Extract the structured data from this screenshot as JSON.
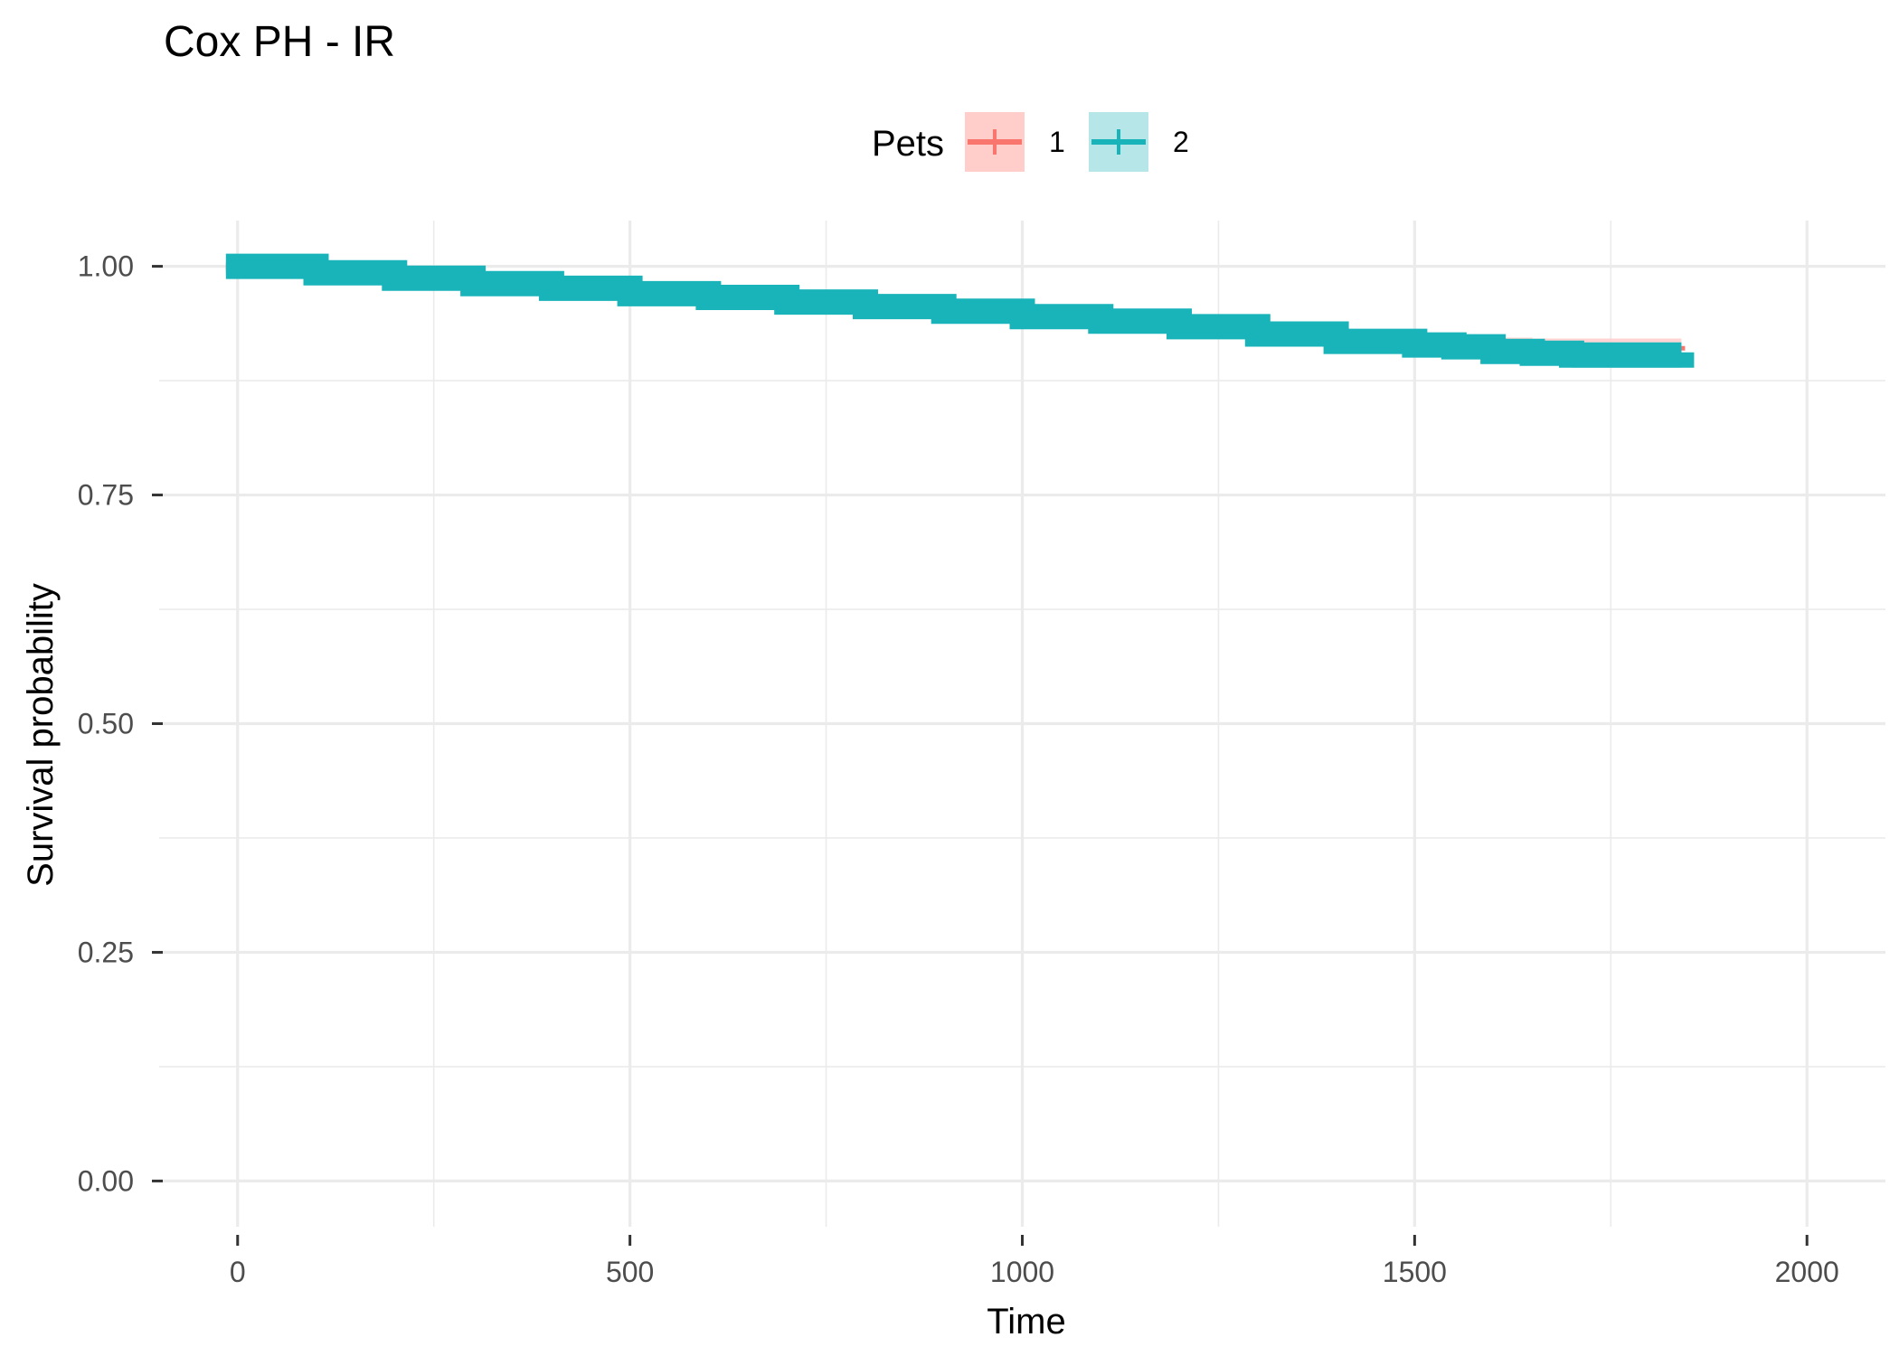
{
  "colors": {
    "series1": "#F8766D",
    "series1_band": "#FFCDCA",
    "series2": "#19B4B9",
    "series2_band": "#B7E6E8",
    "grid": "#EBEBEB",
    "tick": "#4D4D4D"
  },
  "chart_data": {
    "type": "line",
    "title": "Cox PH - IR",
    "xlabel": "Time",
    "ylabel": "Survival probability",
    "xlim": [
      -100,
      2100
    ],
    "ylim": [
      -0.05,
      1.05
    ],
    "x_ticks": [
      0,
      500,
      1000,
      1500,
      2000
    ],
    "x_tick_labels": [
      "0",
      "500",
      "1000",
      "1500",
      "2000"
    ],
    "y_ticks": [
      0,
      0.25,
      0.5,
      0.75,
      1.0
    ],
    "y_tick_labels": [
      "0.00",
      "0.25",
      "0.50",
      "0.75",
      "1.00"
    ],
    "grid": true,
    "legend": {
      "title": "Pets",
      "position": "top",
      "entries": [
        "1",
        "2"
      ]
    },
    "series": [
      {
        "name": "1",
        "color": "#F8766D",
        "x": [
          -15,
          0,
          100,
          200,
          300,
          400,
          500,
          600,
          700,
          800,
          900,
          1000,
          1100,
          1200,
          1300,
          1400,
          1500,
          1550,
          1600,
          1650,
          1700,
          1750,
          1800,
          1830,
          1840
        ],
        "y": [
          1.0,
          1.0,
          0.994,
          0.988,
          0.982,
          0.977,
          0.972,
          0.968,
          0.963,
          0.958,
          0.953,
          0.947,
          0.942,
          0.937,
          0.929,
          0.921,
          0.917,
          0.916,
          0.913,
          0.911,
          0.909,
          0.909,
          0.909,
          0.909,
          0.908
        ],
        "lower": [
          0.993,
          0.993,
          0.988,
          0.983,
          0.977,
          0.972,
          0.967,
          0.963,
          0.957,
          0.952,
          0.947,
          0.941,
          0.936,
          0.93,
          0.922,
          0.914,
          0.91,
          0.908,
          0.904,
          0.901,
          0.897,
          0.897,
          0.897,
          0.897,
          0.897
        ],
        "upper": [
          1.0,
          1.0,
          1.0,
          0.993,
          0.987,
          0.982,
          0.977,
          0.973,
          0.969,
          0.964,
          0.959,
          0.953,
          0.948,
          0.944,
          0.936,
          0.928,
          0.924,
          0.924,
          0.922,
          0.921,
          0.921,
          0.921,
          0.921,
          0.921,
          0.921
        ]
      },
      {
        "name": "2",
        "color": "#19B4B9",
        "x": [
          -15,
          0,
          100,
          200,
          300,
          400,
          500,
          600,
          700,
          800,
          900,
          1000,
          1100,
          1200,
          1300,
          1400,
          1500,
          1550,
          1600,
          1650,
          1700,
          1750,
          1800,
          1830,
          1840
        ],
        "y": [
          1.0,
          1.0,
          0.993,
          0.987,
          0.981,
          0.976,
          0.97,
          0.966,
          0.961,
          0.956,
          0.951,
          0.945,
          0.94,
          0.934,
          0.926,
          0.918,
          0.914,
          0.912,
          0.907,
          0.905,
          0.903,
          0.903,
          0.903,
          0.903,
          0.906
        ],
        "lower": [
          0.992,
          0.992,
          0.987,
          0.981,
          0.975,
          0.97,
          0.964,
          0.96,
          0.954,
          0.949,
          0.944,
          0.938,
          0.933,
          0.927,
          0.918,
          0.91,
          0.906,
          0.903,
          0.897,
          0.894,
          0.889,
          0.889,
          0.889,
          0.889,
          0.889
        ],
        "upper": [
          1.0,
          1.0,
          1.0,
          0.993,
          0.987,
          0.982,
          0.976,
          0.972,
          0.968,
          0.963,
          0.958,
          0.952,
          0.947,
          0.941,
          0.934,
          0.926,
          0.922,
          0.921,
          0.917,
          0.916,
          0.917,
          0.917,
          0.917,
          0.917,
          0.917
        ]
      }
    ]
  }
}
